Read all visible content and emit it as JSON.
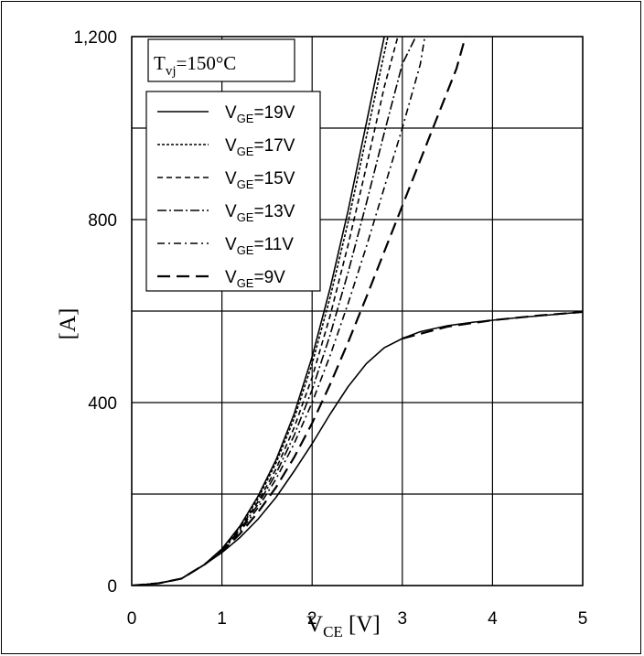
{
  "chart_data": {
    "type": "line",
    "xlabel": "V",
    "xlabel_sub": "CE",
    "xlabel_unit": " [V]",
    "ylabel": "[A]",
    "xlim": [
      0,
      5
    ],
    "ylim": [
      0,
      1200
    ],
    "xticks": [
      0,
      1,
      2,
      3,
      4,
      5
    ],
    "xtick_labels": [
      "0",
      "1",
      "2",
      "3",
      "4",
      "5"
    ],
    "yticks": [
      0,
      400,
      800,
      1200
    ],
    "ytick_labels": [
      "0",
      "400",
      "800",
      "1,200"
    ],
    "grid": true,
    "annotation": {
      "prefix": "T",
      "sub": "vj",
      "suffix": "=150°C"
    },
    "legend_position": "top-left",
    "series": [
      {
        "name": "VGE=19V",
        "label_main": "V",
        "label_sub": "GE",
        "label_suffix": "=19V",
        "dash": "solid",
        "x": [
          0,
          0.3,
          0.55,
          0.8,
          1.0,
          1.2,
          1.4,
          1.6,
          1.8,
          2.0,
          2.2,
          2.4,
          2.6,
          2.8
        ],
        "y": [
          0,
          5,
          15,
          45,
          80,
          130,
          195,
          275,
          375,
          500,
          650,
          820,
          1010,
          1200
        ]
      },
      {
        "name": "VGE=17V",
        "label_main": "V",
        "label_sub": "GE",
        "label_suffix": "=17V",
        "dash": "3,2",
        "x": [
          0,
          0.3,
          0.55,
          0.8,
          1.0,
          1.2,
          1.4,
          1.6,
          1.8,
          2.0,
          2.2,
          2.4,
          2.6,
          2.84
        ],
        "y": [
          0,
          5,
          15,
          45,
          80,
          128,
          190,
          268,
          365,
          485,
          630,
          795,
          980,
          1200
        ]
      },
      {
        "name": "VGE=15V",
        "label_main": "V",
        "label_sub": "GE",
        "label_suffix": "=15V",
        "dash": "6,4",
        "x": [
          0,
          0.3,
          0.55,
          0.8,
          1.0,
          1.2,
          1.4,
          1.6,
          1.8,
          2.0,
          2.2,
          2.4,
          2.6,
          2.8,
          2.95
        ],
        "y": [
          0,
          5,
          15,
          45,
          78,
          125,
          183,
          255,
          345,
          455,
          590,
          745,
          915,
          1090,
          1200
        ]
      },
      {
        "name": "VGE=13V",
        "label_main": "V",
        "label_sub": "GE",
        "label_suffix": "=13V",
        "dash": "10,3,2,3",
        "x": [
          0,
          0.3,
          0.55,
          0.8,
          1.0,
          1.2,
          1.4,
          1.6,
          1.8,
          2.0,
          2.2,
          2.4,
          2.6,
          2.8,
          3.0,
          3.15
        ],
        "y": [
          0,
          5,
          15,
          45,
          77,
          122,
          177,
          245,
          328,
          428,
          548,
          685,
          835,
          990,
          1140,
          1200
        ]
      },
      {
        "name": "VGE=11V",
        "label_main": "V",
        "label_sub": "GE",
        "label_suffix": "=11V",
        "dash": "8,4,2,4",
        "x": [
          0,
          0.3,
          0.55,
          0.8,
          1.0,
          1.2,
          1.4,
          1.6,
          1.8,
          2.0,
          2.2,
          2.4,
          2.6,
          2.8,
          3.0,
          3.2,
          3.25
        ],
        "y": [
          0,
          5,
          15,
          45,
          76,
          118,
          170,
          233,
          310,
          400,
          503,
          617,
          740,
          870,
          1000,
          1140,
          1200
        ]
      },
      {
        "name": "VGE=9V",
        "label_main": "V",
        "label_sub": "GE",
        "label_suffix": "=9V",
        "dash": "14,7",
        "x": [
          0,
          0.3,
          0.55,
          0.8,
          1.0,
          1.2,
          1.4,
          1.6,
          1.8,
          2.0,
          2.2,
          2.4,
          2.6,
          2.8,
          3.0,
          3.2,
          3.4,
          3.6,
          3.7
        ],
        "y": [
          0,
          5,
          15,
          45,
          75,
          113,
          160,
          215,
          280,
          355,
          440,
          532,
          630,
          730,
          830,
          930,
          1030,
          1130,
          1200
        ]
      },
      {
        "name": "VGE=9V-sat",
        "label_main": "",
        "label_sub": "",
        "label_suffix": "",
        "dash": "solid",
        "legend": false,
        "x": [
          0,
          0.3,
          0.55,
          0.8,
          1.0,
          1.2,
          1.4,
          1.6,
          1.8,
          2.0,
          2.2,
          2.4,
          2.6,
          2.8,
          3.0,
          3.2,
          3.5,
          3.8,
          4.0,
          4.3,
          4.6,
          5.0
        ],
        "y": [
          0,
          5,
          15,
          45,
          72,
          105,
          145,
          193,
          250,
          310,
          375,
          435,
          485,
          520,
          540,
          555,
          568,
          576,
          580,
          586,
          591,
          598
        ]
      },
      {
        "name": "VGE=9V-sat-tail",
        "label_main": "",
        "label_sub": "",
        "label_suffix": "",
        "dash": "14,7",
        "legend": false,
        "x": [
          3.0,
          3.5,
          4.0,
          4.5,
          5.0
        ],
        "y": [
          540,
          566,
          580,
          590,
          598
        ]
      }
    ]
  }
}
